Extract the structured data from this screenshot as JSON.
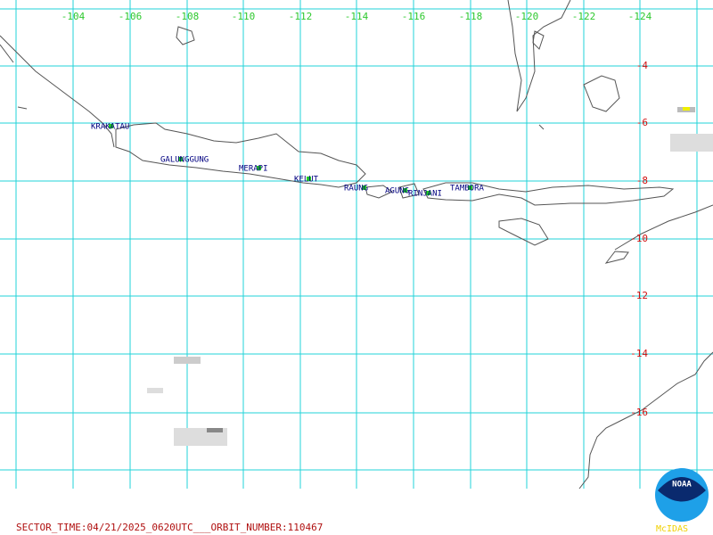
{
  "lon_labels": [
    -104,
    -106,
    -108,
    -110,
    -112,
    -114,
    -116,
    -118,
    -120,
    -122,
    -124
  ],
  "lat_labels": [
    -4,
    -6,
    -8,
    -10,
    -12,
    -14,
    -16
  ],
  "volcanoes": [
    "KRAKATAU",
    "GALUNGGUNG",
    "MERAPI",
    "KELUT",
    "RAUNG",
    "AGUNG",
    "RINJANI",
    "TAMBORA"
  ],
  "footer": "SECTOR_TIME:04/21/2025_0620UTC___ORBIT_NUMBER:110467",
  "logo": {
    "name": "NOAA",
    "caption": "McIDAS"
  }
}
